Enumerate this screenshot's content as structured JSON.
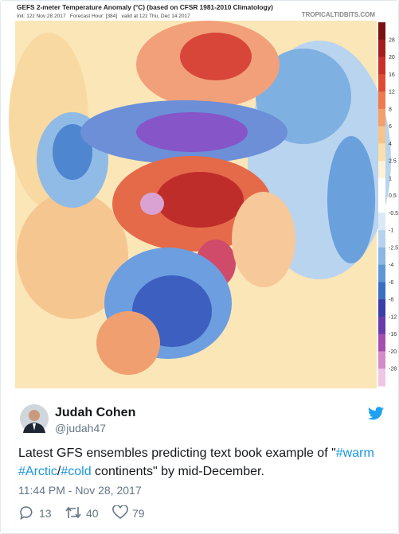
{
  "map": {
    "title": "GEFS 2-meter Temperature Anomaly (°C) (based on CFSR 1981-2010 Climatology)",
    "subtitle": "Init: 12z Nov 28 2017   Forecast Hour: [384]   valid at 12z Thu, Dec 14 2017",
    "credit": "TROPICALTIDBITS.COM",
    "colorbar_ticks": [
      28,
      20,
      16,
      12,
      8,
      6,
      4,
      2.5,
      1,
      0.5,
      -0.5,
      -1,
      -2.5,
      -4,
      -6,
      -8,
      -12,
      -16,
      -20,
      -28
    ]
  },
  "tweet": {
    "name": "Judah Cohen",
    "handle": "@judah47",
    "text": [
      "Latest GFS ensembles predicting text book example of \"",
      "#warm",
      " ",
      "#Arctic",
      "/",
      "#cold",
      " continents\" by mid-December."
    ],
    "timestamp": "11:44 PM - Nov 28, 2017",
    "replies": "13",
    "retweets": "40",
    "likes": "79"
  }
}
